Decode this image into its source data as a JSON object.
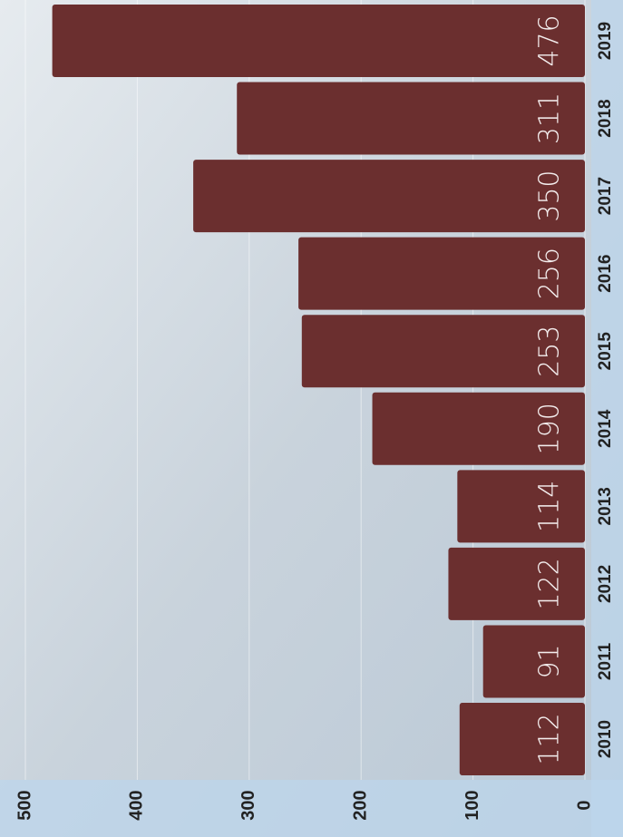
{
  "chart_data": {
    "type": "bar",
    "categories": [
      "2010",
      "2011",
      "2012",
      "2013",
      "2014",
      "2015",
      "2016",
      "2017",
      "2018",
      "2019"
    ],
    "values": [
      112,
      91,
      122,
      114,
      190,
      253,
      256,
      350,
      311,
      476
    ],
    "color": "#6b2f2f",
    "ylim": [
      0,
      500
    ],
    "yticks": [
      0,
      100,
      200,
      300,
      400,
      500
    ],
    "grid": true
  }
}
